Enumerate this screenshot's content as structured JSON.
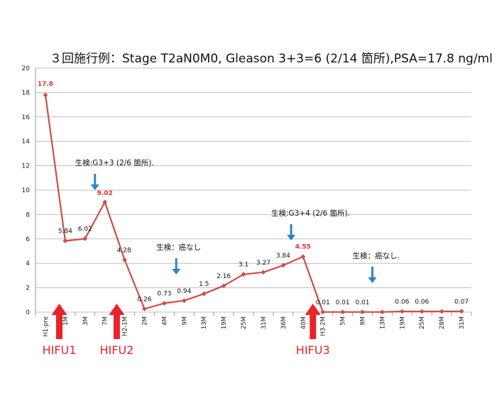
{
  "chart_data": {
    "type": "line",
    "title": "３回施行例：Stage T2aN0M0, Gleason 3+3=6 (2/14 箇所),PSA=17.8 ng/ml",
    "xlabel": "",
    "ylabel": "",
    "ylim": [
      0,
      20
    ],
    "yticks": [
      0,
      2,
      4,
      6,
      8,
      10,
      12,
      14,
      16,
      18,
      20
    ],
    "grid": true,
    "line_color": "#cc4f4b",
    "categories": [
      "H1-pre",
      "1M",
      "3M",
      "7M",
      "H2-1M",
      "2M",
      "4M",
      "9M",
      "13M",
      "19M",
      "25M",
      "31M",
      "36M",
      "40M",
      "H3-2M",
      "5M",
      "9M",
      "13M",
      "19M",
      "25M",
      "28M",
      "31M"
    ],
    "series": [
      {
        "values": [
          17.8,
          5.84,
          6.02,
          9.02,
          4.28,
          0.26,
          0.73,
          0.94,
          1.5,
          2.16,
          3.1,
          3.27,
          3.84,
          4.55,
          0.01,
          0.01,
          0.01,
          0.01,
          0.06,
          0.06,
          0.06,
          0.07
        ]
      }
    ],
    "data_labels": [
      {
        "index": 0,
        "text": "17.8",
        "highlight": true
      },
      {
        "index": 1,
        "text": "5.84"
      },
      {
        "index": 2,
        "text": "6.02"
      },
      {
        "index": 3,
        "text": "9.02",
        "highlight": true
      },
      {
        "index": 4,
        "text": "4.28"
      },
      {
        "index": 5,
        "text": "0.26"
      },
      {
        "index": 6,
        "text": "0.73"
      },
      {
        "index": 7,
        "text": "0.94"
      },
      {
        "index": 8,
        "text": "1.5"
      },
      {
        "index": 9,
        "text": "2.16"
      },
      {
        "index": 10,
        "text": "3.1"
      },
      {
        "index": 11,
        "text": "3.27"
      },
      {
        "index": 12,
        "text": "3.84"
      },
      {
        "index": 13,
        "text": "4.55",
        "highlight": true
      },
      {
        "index": 14,
        "text": "0.01"
      },
      {
        "index": 15,
        "text": "0.01"
      },
      {
        "index": 16,
        "text": "0.01"
      },
      {
        "index": 18,
        "text": "0.06"
      },
      {
        "index": 19,
        "text": "0.06"
      },
      {
        "index": 21,
        "text": "0.07"
      }
    ],
    "annotations": [
      {
        "text": "生検:G3+3 (2/6 箇所).",
        "arrow_index": 2.5
      },
      {
        "text": "生検：癌なし",
        "arrow_index": 6.6
      },
      {
        "text": "生検:G3+4 (2/6 箇所).",
        "arrow_index": 12.4
      },
      {
        "text": "生検：癌なし.",
        "arrow_index": 16.5
      }
    ],
    "treatments": [
      {
        "label": "HIFU1",
        "index": 0.7
      },
      {
        "label": "HIFU2",
        "index": 3.6
      },
      {
        "label": "HIFU3",
        "index": 13.5
      }
    ],
    "colors": {
      "line": "#cc4f4b",
      "highlight_label": "#e03030",
      "annotation_arrow": "#2a84c8",
      "treatment_arrow": "#e8242a"
    }
  }
}
